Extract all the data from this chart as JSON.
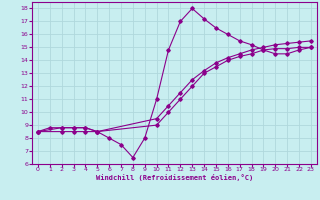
{
  "xlabel": "Windchill (Refroidissement éolien,°C)",
  "bg_color": "#c8eef0",
  "line_color": "#8b008b",
  "grid_color": "#b0d8dc",
  "xlim": [
    -0.5,
    23.5
  ],
  "ylim": [
    6,
    18.5
  ],
  "xticks": [
    0,
    1,
    2,
    3,
    4,
    5,
    6,
    7,
    8,
    9,
    10,
    11,
    12,
    13,
    14,
    15,
    16,
    17,
    18,
    19,
    20,
    21,
    22,
    23
  ],
  "yticks": [
    6,
    7,
    8,
    9,
    10,
    11,
    12,
    13,
    14,
    15,
    16,
    17,
    18
  ],
  "series": [
    {
      "x": [
        0,
        1,
        2,
        3,
        4,
        5,
        6,
        7,
        8,
        9,
        10,
        11,
        12,
        13,
        14,
        15,
        16,
        17,
        18,
        19,
        20,
        21,
        22,
        23
      ],
      "y": [
        8.5,
        8.8,
        8.8,
        8.8,
        8.8,
        8.5,
        8.0,
        7.5,
        6.5,
        8.0,
        11.0,
        14.8,
        17.0,
        18.0,
        17.2,
        16.5,
        16.0,
        15.5,
        15.2,
        14.8,
        14.5,
        14.5,
        14.8,
        15.0
      ]
    },
    {
      "x": [
        0,
        2,
        3,
        4,
        5,
        10,
        11,
        12,
        13,
        14,
        15,
        16,
        17,
        18,
        19,
        20,
        21,
        22,
        23
      ],
      "y": [
        8.5,
        8.8,
        8.8,
        8.8,
        8.5,
        9.5,
        10.5,
        11.5,
        12.5,
        13.2,
        13.8,
        14.2,
        14.5,
        14.8,
        15.0,
        15.2,
        15.3,
        15.4,
        15.5
      ]
    },
    {
      "x": [
        0,
        2,
        3,
        4,
        5,
        10,
        11,
        12,
        13,
        14,
        15,
        16,
        17,
        18,
        19,
        20,
        21,
        22,
        23
      ],
      "y": [
        8.5,
        8.5,
        8.5,
        8.5,
        8.5,
        9.0,
        10.0,
        11.0,
        12.0,
        13.0,
        13.5,
        14.0,
        14.3,
        14.5,
        14.8,
        14.9,
        14.9,
        15.0,
        15.0
      ]
    }
  ]
}
